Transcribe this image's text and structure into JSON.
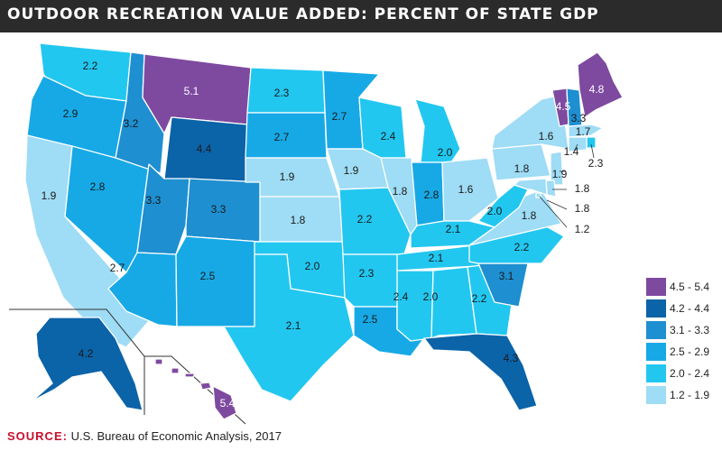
{
  "title": "OUTDOOR RECREATION VALUE ADDED: PERCENT OF STATE GDP",
  "colors": {
    "c1": "#7e4aa0",
    "c2": "#0b63a8",
    "c3": "#1e8fd0",
    "c4": "#17a9e6",
    "c5": "#22c7f0",
    "c6": "#9fdcf5",
    "borders": "#ffffff"
  },
  "states": [
    {
      "id": "WA",
      "value": "2.2",
      "cls": "c5"
    },
    {
      "id": "OR",
      "value": "2.9",
      "cls": "c4"
    },
    {
      "id": "CA",
      "value": "1.9",
      "cls": "c6"
    },
    {
      "id": "NV",
      "value": "2.8",
      "cls": "c4"
    },
    {
      "id": "ID",
      "value": "3.2",
      "cls": "c3"
    },
    {
      "id": "MT",
      "value": "5.1",
      "cls": "c1"
    },
    {
      "id": "WY",
      "value": "4.4",
      "cls": "c2"
    },
    {
      "id": "UT",
      "value": "3.3",
      "cls": "c3"
    },
    {
      "id": "AZ",
      "value": "2.7",
      "cls": "c4"
    },
    {
      "id": "CO",
      "value": "3.3",
      "cls": "c3"
    },
    {
      "id": "NM",
      "value": "2.5",
      "cls": "c4"
    },
    {
      "id": "ND",
      "value": "2.3",
      "cls": "c5"
    },
    {
      "id": "SD",
      "value": "2.7",
      "cls": "c4"
    },
    {
      "id": "NE",
      "value": "1.9",
      "cls": "c6"
    },
    {
      "id": "KS",
      "value": "1.8",
      "cls": "c6"
    },
    {
      "id": "OK",
      "value": "2.0",
      "cls": "c5"
    },
    {
      "id": "TX",
      "value": "2.1",
      "cls": "c5"
    },
    {
      "id": "MN",
      "value": "2.7",
      "cls": "c4"
    },
    {
      "id": "IA",
      "value": "1.9",
      "cls": "c6"
    },
    {
      "id": "MO",
      "value": "2.2",
      "cls": "c5"
    },
    {
      "id": "AR",
      "value": "2.3",
      "cls": "c5"
    },
    {
      "id": "LA",
      "value": "2.5",
      "cls": "c4"
    },
    {
      "id": "WI",
      "value": "2.4",
      "cls": "c5"
    },
    {
      "id": "IL",
      "value": "1.8",
      "cls": "c6"
    },
    {
      "id": "MI",
      "value": "2.0",
      "cls": "c5"
    },
    {
      "id": "IN",
      "value": "2.8",
      "cls": "c4"
    },
    {
      "id": "OH",
      "value": "1.6",
      "cls": "c6"
    },
    {
      "id": "KY",
      "value": "2.1",
      "cls": "c5"
    },
    {
      "id": "TN",
      "value": "2.1",
      "cls": "c5"
    },
    {
      "id": "MS",
      "value": "2.4",
      "cls": "c5"
    },
    {
      "id": "AL",
      "value": "2.0",
      "cls": "c5"
    },
    {
      "id": "GA",
      "value": "2.2",
      "cls": "c5"
    },
    {
      "id": "FL",
      "value": "4.3",
      "cls": "c2"
    },
    {
      "id": "SC",
      "value": "3.1",
      "cls": "c3"
    },
    {
      "id": "NC",
      "value": "2.2",
      "cls": "c5"
    },
    {
      "id": "VA",
      "value": "1.8",
      "cls": "c6"
    },
    {
      "id": "WV",
      "value": "2.0",
      "cls": "c5"
    },
    {
      "id": "PA",
      "value": "1.8",
      "cls": "c6"
    },
    {
      "id": "NY",
      "value": "1.6",
      "cls": "c6"
    },
    {
      "id": "VT",
      "value": "4.5",
      "cls": "c1"
    },
    {
      "id": "NH",
      "value": "3.3",
      "cls": "c3"
    },
    {
      "id": "ME",
      "value": "4.8",
      "cls": "c1"
    },
    {
      "id": "MA",
      "value": "1.7",
      "cls": "c6"
    },
    {
      "id": "RI",
      "value": "2.3",
      "cls": "c5"
    },
    {
      "id": "CT",
      "value": "1.4",
      "cls": "c6"
    },
    {
      "id": "NJ",
      "value": "1.9",
      "cls": "c6"
    },
    {
      "id": "DE",
      "value": "1.8",
      "cls": "c6"
    },
    {
      "id": "MD",
      "value": "1.8",
      "cls": "c6"
    },
    {
      "id": "DC",
      "value": "1.2",
      "cls": "c6"
    },
    {
      "id": "AK",
      "value": "4.2",
      "cls": "c2"
    },
    {
      "id": "HI",
      "value": "5.4",
      "cls": "c1"
    }
  ],
  "legend": [
    {
      "label": "4.5 - 5.4",
      "cls": "c1"
    },
    {
      "label": "4.2 - 4.4",
      "cls": "c2"
    },
    {
      "label": "3.1 - 3.3",
      "cls": "c3"
    },
    {
      "label": "2.5 - 2.9",
      "cls": "c4"
    },
    {
      "label": "2.0 - 2.4",
      "cls": "c5"
    },
    {
      "label": "1.2 - 1.9",
      "cls": "c6"
    }
  ],
  "source": {
    "prefix": "SOURCE:",
    "text": "U.S. Bureau of Economic Analysis, 2017"
  }
}
